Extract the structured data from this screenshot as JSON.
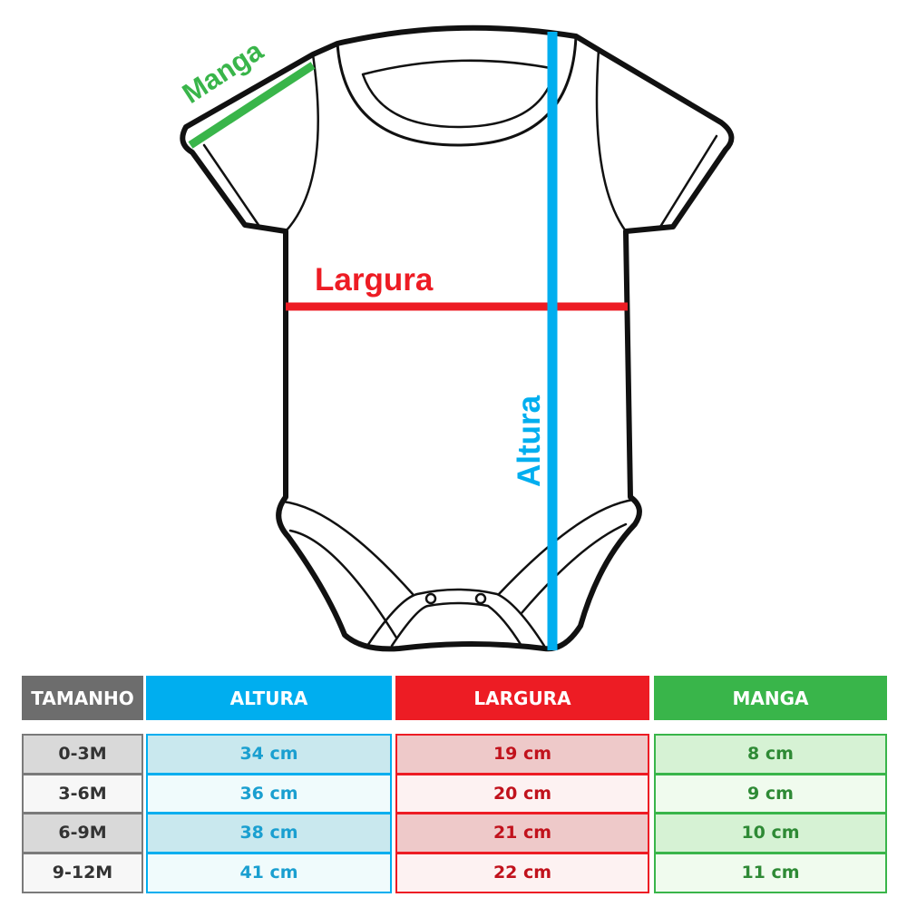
{
  "figure": {
    "labels": {
      "manga": "Manga",
      "largura": "Largura",
      "altura": "Altura"
    },
    "colors": {
      "manga": "#39b54a",
      "largura": "#ed1c24",
      "altura": "#00aeef",
      "outline": "#111111"
    }
  },
  "table": {
    "headers": [
      "TAMANHO",
      "ALTURA",
      "LARGURA",
      "MANGA"
    ],
    "header_colors": [
      "#6d6d6d",
      "#00aeef",
      "#ed1c24",
      "#39b54a"
    ],
    "rows": [
      [
        "0-3M",
        "34 cm",
        "19 cm",
        "8 cm"
      ],
      [
        "3-6M",
        "36 cm",
        "20 cm",
        "9 cm"
      ],
      [
        "6-9M",
        "38 cm",
        "21 cm",
        "10 cm"
      ],
      [
        "9-12M",
        "41 cm",
        "22 cm",
        "11 cm"
      ]
    ]
  }
}
